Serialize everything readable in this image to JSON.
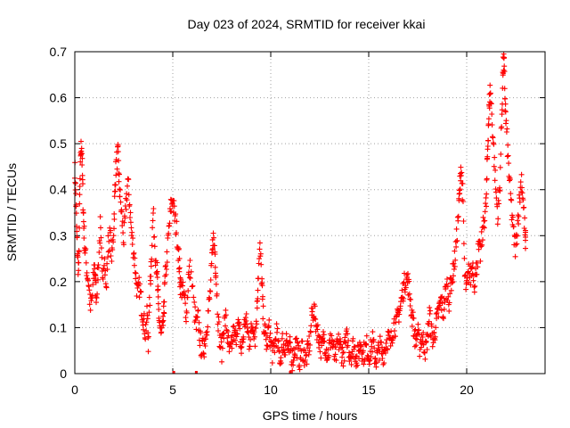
{
  "chart_data": {
    "type": "scatter",
    "title": "Day 023 of 2024, SRMTID for receiver kkai",
    "xlabel": "GPS time / hours",
    "ylabel": "SRMTID / TECUs",
    "xlim": [
      0,
      24
    ],
    "ylim": [
      0,
      0.7
    ],
    "x_ticks": [
      0,
      5,
      10,
      15,
      20
    ],
    "y_ticks": [
      0,
      0.1,
      0.2,
      0.3,
      0.4,
      0.5,
      0.6,
      0.7
    ],
    "x_tick_labels": [
      "0",
      "5",
      "10",
      "15",
      "20"
    ],
    "y_tick_labels": [
      "0",
      "0.1",
      "0.2",
      "0.3",
      "0.4",
      "0.5",
      "0.6",
      "0.7"
    ],
    "grid": true,
    "marker": "+",
    "series": [
      {
        "name": "SRMTID",
        "color": "#ff0000",
        "points": [
          [
            0.0,
            0.45
          ],
          [
            0.05,
            0.39
          ],
          [
            0.1,
            0.3
          ],
          [
            0.15,
            0.25
          ],
          [
            0.2,
            0.22
          ],
          [
            0.25,
            0.38
          ],
          [
            0.3,
            0.48
          ],
          [
            0.35,
            0.5
          ],
          [
            0.4,
            0.41
          ],
          [
            0.45,
            0.33
          ],
          [
            0.5,
            0.28
          ],
          [
            0.6,
            0.23
          ],
          [
            0.7,
            0.2
          ],
          [
            0.8,
            0.14
          ],
          [
            0.9,
            0.17
          ],
          [
            1.0,
            0.24
          ],
          [
            1.05,
            0.2
          ],
          [
            1.1,
            0.17
          ],
          [
            1.2,
            0.23
          ],
          [
            1.3,
            0.32
          ],
          [
            1.4,
            0.21
          ],
          [
            1.5,
            0.26
          ],
          [
            1.6,
            0.18
          ],
          [
            1.7,
            0.28
          ],
          [
            1.8,
            0.3
          ],
          [
            1.9,
            0.25
          ],
          [
            2.0,
            0.33
          ],
          [
            2.05,
            0.4
          ],
          [
            2.1,
            0.45
          ],
          [
            2.2,
            0.48
          ],
          [
            2.25,
            0.43
          ],
          [
            2.3,
            0.39
          ],
          [
            2.4,
            0.34
          ],
          [
            2.5,
            0.29
          ],
          [
            2.6,
            0.36
          ],
          [
            2.7,
            0.42
          ],
          [
            2.8,
            0.37
          ],
          [
            2.9,
            0.3
          ],
          [
            3.0,
            0.27
          ],
          [
            3.1,
            0.22
          ],
          [
            3.2,
            0.17
          ],
          [
            3.3,
            0.19
          ],
          [
            3.4,
            0.15
          ],
          [
            3.5,
            0.12
          ],
          [
            3.6,
            0.09
          ],
          [
            3.7,
            0.13
          ],
          [
            3.75,
            0.07
          ],
          [
            3.85,
            0.19
          ],
          [
            3.9,
            0.25
          ],
          [
            4.0,
            0.35
          ],
          [
            4.1,
            0.27
          ],
          [
            4.2,
            0.22
          ],
          [
            4.25,
            0.16
          ],
          [
            4.3,
            0.12
          ],
          [
            4.4,
            0.08
          ],
          [
            4.5,
            0.1
          ],
          [
            4.55,
            0.14
          ],
          [
            4.6,
            0.2
          ],
          [
            4.7,
            0.25
          ],
          [
            4.8,
            0.31
          ],
          [
            4.9,
            0.36
          ],
          [
            5.0,
            0.38
          ],
          [
            5.1,
            0.34
          ],
          [
            5.2,
            0.31
          ],
          [
            5.3,
            0.26
          ],
          [
            5.35,
            0.22
          ],
          [
            5.4,
            0.19
          ],
          [
            5.5,
            0.18
          ],
          [
            5.6,
            0.16
          ],
          [
            5.7,
            0.13
          ],
          [
            5.8,
            0.21
          ],
          [
            5.9,
            0.23
          ],
          [
            6.1,
            0.14
          ],
          [
            6.2,
            0.1
          ],
          [
            6.3,
            0.12
          ],
          [
            6.4,
            0.07
          ],
          [
            6.5,
            0.05
          ],
          [
            6.6,
            0.06
          ],
          [
            6.7,
            0.09
          ],
          [
            6.8,
            0.13
          ],
          [
            6.9,
            0.17
          ],
          [
            7.0,
            0.24
          ],
          [
            7.05,
            0.3
          ],
          [
            7.15,
            0.27
          ],
          [
            7.2,
            0.22
          ],
          [
            7.3,
            0.13
          ],
          [
            7.4,
            0.07
          ],
          [
            7.5,
            0.05
          ],
          [
            7.6,
            0.1
          ],
          [
            7.7,
            0.12
          ],
          [
            7.8,
            0.08
          ],
          [
            7.9,
            0.04
          ],
          [
            8.0,
            0.06
          ],
          [
            8.1,
            0.09
          ],
          [
            8.2,
            0.07
          ],
          [
            8.3,
            0.11
          ],
          [
            8.4,
            0.09
          ],
          [
            8.5,
            0.05
          ],
          [
            8.6,
            0.08
          ],
          [
            8.7,
            0.12
          ],
          [
            8.8,
            0.1
          ],
          [
            8.9,
            0.07
          ],
          [
            9.0,
            0.09
          ],
          [
            9.1,
            0.11
          ],
          [
            9.2,
            0.08
          ],
          [
            9.3,
            0.14
          ],
          [
            9.35,
            0.21
          ],
          [
            9.45,
            0.27
          ],
          [
            9.55,
            0.2
          ],
          [
            9.6,
            0.13
          ],
          [
            9.7,
            0.09
          ],
          [
            9.8,
            0.06
          ],
          [
            9.9,
            0.1
          ],
          [
            10.0,
            0.07
          ],
          [
            10.1,
            0.04
          ],
          [
            10.2,
            0.06
          ],
          [
            10.3,
            0.09
          ],
          [
            10.4,
            0.05
          ],
          [
            10.5,
            0.03
          ],
          [
            10.6,
            0.07
          ],
          [
            10.7,
            0.05
          ],
          [
            10.8,
            0.08
          ],
          [
            10.9,
            0.04
          ],
          [
            11.0,
            0.06
          ],
          [
            11.1,
            0.03
          ],
          [
            11.2,
            0.05
          ],
          [
            11.3,
            0.07
          ],
          [
            11.4,
            0.04
          ],
          [
            11.5,
            0.03
          ],
          [
            11.6,
            0.06
          ],
          [
            11.7,
            0.04
          ],
          [
            11.8,
            0.03
          ],
          [
            11.9,
            0.05
          ],
          [
            12.0,
            0.07
          ],
          [
            12.1,
            0.13
          ],
          [
            12.2,
            0.14
          ],
          [
            12.3,
            0.11
          ],
          [
            12.4,
            0.09
          ],
          [
            12.5,
            0.07
          ],
          [
            12.6,
            0.05
          ],
          [
            12.7,
            0.08
          ],
          [
            12.8,
            0.06
          ],
          [
            12.9,
            0.04
          ],
          [
            13.0,
            0.06
          ],
          [
            13.1,
            0.08
          ],
          [
            13.2,
            0.05
          ],
          [
            13.3,
            0.03
          ],
          [
            13.4,
            0.06
          ],
          [
            13.5,
            0.07
          ],
          [
            13.6,
            0.05
          ],
          [
            13.7,
            0.04
          ],
          [
            13.8,
            0.06
          ],
          [
            13.9,
            0.08
          ],
          [
            14.0,
            0.05
          ],
          [
            14.1,
            0.04
          ],
          [
            14.2,
            0.06
          ],
          [
            14.3,
            0.05
          ],
          [
            14.4,
            0.03
          ],
          [
            14.5,
            0.05
          ],
          [
            14.6,
            0.07
          ],
          [
            14.7,
            0.04
          ],
          [
            14.8,
            0.05
          ],
          [
            14.9,
            0.06
          ],
          [
            15.0,
            0.04
          ],
          [
            15.1,
            0.05
          ],
          [
            15.2,
            0.07
          ],
          [
            15.3,
            0.04
          ],
          [
            15.4,
            0.03
          ],
          [
            15.5,
            0.05
          ],
          [
            15.6,
            0.06
          ],
          [
            15.7,
            0.04
          ],
          [
            15.8,
            0.05
          ],
          [
            15.9,
            0.07
          ],
          [
            16.0,
            0.08
          ],
          [
            16.1,
            0.06
          ],
          [
            16.2,
            0.09
          ],
          [
            16.3,
            0.11
          ],
          [
            16.4,
            0.1
          ],
          [
            16.5,
            0.13
          ],
          [
            16.6,
            0.14
          ],
          [
            16.7,
            0.17
          ],
          [
            16.8,
            0.19
          ],
          [
            16.9,
            0.21
          ],
          [
            17.0,
            0.2
          ],
          [
            17.1,
            0.17
          ],
          [
            17.2,
            0.13
          ],
          [
            17.3,
            0.1
          ],
          [
            17.4,
            0.07
          ],
          [
            17.5,
            0.09
          ],
          [
            17.6,
            0.06
          ],
          [
            17.7,
            0.08
          ],
          [
            17.8,
            0.07
          ],
          [
            17.9,
            0.05
          ],
          [
            18.0,
            0.08
          ],
          [
            18.1,
            0.13
          ],
          [
            18.2,
            0.09
          ],
          [
            18.3,
            0.07
          ],
          [
            18.4,
            0.1
          ],
          [
            18.5,
            0.12
          ],
          [
            18.6,
            0.14
          ],
          [
            18.7,
            0.16
          ],
          [
            18.8,
            0.13
          ],
          [
            18.9,
            0.17
          ],
          [
            19.0,
            0.19
          ],
          [
            19.1,
            0.16
          ],
          [
            19.2,
            0.2
          ],
          [
            19.3,
            0.22
          ],
          [
            19.4,
            0.25
          ],
          [
            19.5,
            0.3
          ],
          [
            19.6,
            0.36
          ],
          [
            19.65,
            0.41
          ],
          [
            19.7,
            0.45
          ],
          [
            19.8,
            0.39
          ],
          [
            19.9,
            0.21
          ],
          [
            20.0,
            0.18
          ],
          [
            20.1,
            0.22
          ],
          [
            20.2,
            0.21
          ],
          [
            20.3,
            0.24
          ],
          [
            20.4,
            0.2
          ],
          [
            20.5,
            0.23
          ],
          [
            20.6,
            0.27
          ],
          [
            20.7,
            0.26
          ],
          [
            20.8,
            0.3
          ],
          [
            20.9,
            0.34
          ],
          [
            21.0,
            0.37
          ],
          [
            21.05,
            0.46
          ],
          [
            21.1,
            0.53
          ],
          [
            21.15,
            0.58
          ],
          [
            21.2,
            0.62
          ],
          [
            21.3,
            0.55
          ],
          [
            21.4,
            0.47
          ],
          [
            21.5,
            0.39
          ],
          [
            21.6,
            0.34
          ],
          [
            21.7,
            0.42
          ],
          [
            21.8,
            0.57
          ],
          [
            21.85,
            0.66
          ],
          [
            21.9,
            0.68
          ],
          [
            21.95,
            0.61
          ],
          [
            22.0,
            0.55
          ],
          [
            22.1,
            0.48
          ],
          [
            22.2,
            0.41
          ],
          [
            22.3,
            0.35
          ],
          [
            22.4,
            0.3
          ],
          [
            22.5,
            0.27
          ],
          [
            22.6,
            0.33
          ],
          [
            22.7,
            0.38
          ],
          [
            22.8,
            0.43
          ],
          [
            22.9,
            0.36
          ],
          [
            23.0,
            0.29
          ]
        ],
        "low_markers": [
          [
            5.05,
            0.0
          ],
          [
            6.2,
            0.0
          ],
          [
            11.0,
            0.0
          ]
        ]
      }
    ]
  }
}
